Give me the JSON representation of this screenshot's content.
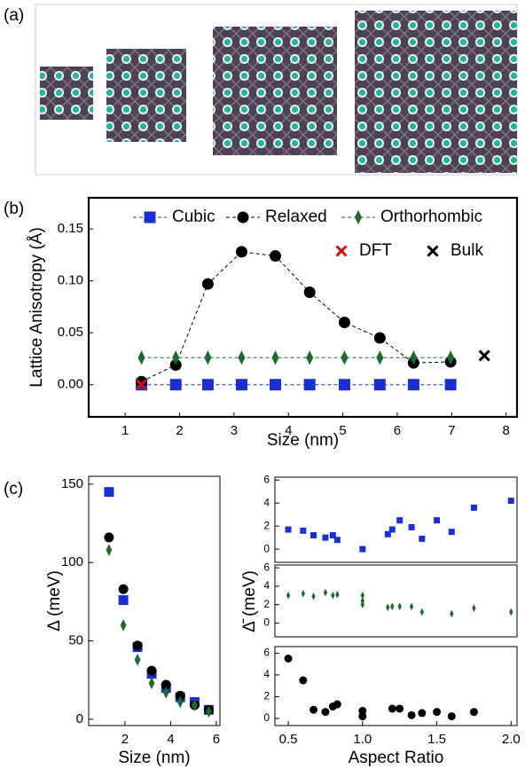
{
  "panel_labels": [
    "(a)",
    "(b)",
    "(c)"
  ],
  "chart_data": [
    {
      "type": "line",
      "xlabel": "Size (nm)",
      "ylabel": "Lattice Anisotropy (Å)",
      "x": [
        1.3,
        1.93,
        2.52,
        3.14,
        3.76,
        4.39,
        5.03,
        5.68,
        6.3,
        6.98
      ],
      "series": [
        {
          "name": "Cubic",
          "color": "#1a2fd0",
          "marker": "square",
          "line": "dashed",
          "values": [
            0,
            0,
            0,
            0,
            0,
            0,
            0,
            0,
            0,
            0
          ]
        },
        {
          "name": "Relaxed",
          "color": "#000000",
          "marker": "circle",
          "line": "dashed",
          "values": [
            0.003,
            0.019,
            0.097,
            0.128,
            0.124,
            0.089,
            0.06,
            0.045,
            0.021,
            0.022
          ]
        },
        {
          "name": "Orthorhombic",
          "color": "#1e6b2e",
          "marker": "diamond",
          "line": "dashed",
          "values": [
            0.026,
            0.026,
            0.026,
            0.026,
            0.026,
            0.026,
            0.026,
            0.026,
            0.026,
            0.026
          ]
        }
      ],
      "points": [
        {
          "name": "DFT",
          "color": "#cc1111",
          "marker": "cross",
          "x": 1.3,
          "y": 0
        },
        {
          "name": "Bulk",
          "color": "#000000",
          "marker": "cross",
          "x": 7.6,
          "y": 0.028
        }
      ],
      "xlim": [
        0.33,
        8.2
      ],
      "ylim": [
        -0.031,
        0.18
      ],
      "xticks": [
        1,
        2,
        3,
        4,
        5,
        6,
        7,
        8
      ],
      "yticks": [
        {
          "value": 0,
          "label": "0.00"
        },
        {
          "value": 0.05,
          "label": "0.05"
        },
        {
          "value": 0.1,
          "label": "0.10"
        },
        {
          "value": 0.15,
          "label": "0.15"
        }
      ]
    },
    {
      "type": "scatter",
      "xlabel": "Size (nm)",
      "ylabel": "Δ (meV)",
      "x": [
        1.3,
        1.93,
        2.55,
        3.17,
        3.8,
        4.42,
        5.05,
        5.67
      ],
      "series": [
        {
          "color": "#1a2fd0",
          "marker": "square",
          "values": [
            145,
            76,
            46,
            29,
            20,
            14,
            11,
            6
          ]
        },
        {
          "color": "#000000",
          "marker": "circle",
          "values": [
            116,
            83,
            47,
            31,
            22,
            15,
            9,
            6
          ]
        },
        {
          "color": "#1e6b2e",
          "marker": "diamond",
          "values": [
            108,
            60,
            38,
            23,
            17,
            11,
            9,
            5
          ]
        }
      ],
      "xlim": [
        0.41,
        6.16
      ],
      "ylim": [
        -4,
        155
      ],
      "xticks": [
        2,
        4,
        6
      ],
      "yticks": [
        0,
        50,
        100,
        150
      ]
    },
    {
      "type": "scatter",
      "series": [
        {
          "color": "#1a2fd0",
          "marker": "square",
          "x": [
            0.5,
            0.6,
            0.67,
            0.75,
            0.8,
            0.83,
            1.0,
            1.17,
            1.2,
            1.25,
            1.33,
            1.4,
            1.5,
            1.6,
            1.75,
            2.0
          ],
          "values": [
            1.7,
            1.6,
            1.2,
            1.0,
            1.2,
            0.8,
            0.0,
            1.3,
            1.7,
            2.5,
            1.9,
            0.9,
            2.5,
            1.5,
            3.6,
            4.2
          ]
        }
      ],
      "xlim": [
        0.41,
        2.04
      ],
      "ylim": [
        -1.15,
        6.25
      ],
      "yticks": [
        0,
        2,
        4,
        6
      ]
    },
    {
      "type": "scatter",
      "ylabel": "Δ̄ (meV)",
      "series": [
        {
          "color": "#1e6b2e",
          "marker": "diamond",
          "x": [
            0.5,
            0.6,
            0.67,
            0.75,
            0.8,
            0.83,
            1.0,
            1.0,
            1.0,
            1.17,
            1.2,
            1.25,
            1.33,
            1.4,
            1.6,
            1.75,
            2.0
          ],
          "values": [
            3.0,
            3.2,
            2.9,
            3.3,
            3.0,
            3.1,
            3.0,
            2.4,
            2.0,
            1.7,
            1.8,
            1.8,
            1.8,
            1.2,
            1.0,
            1.6,
            1.2
          ]
        }
      ],
      "xlim": [
        0.41,
        2.04
      ],
      "ylim": [
        -1.5,
        6.3
      ],
      "yticks": [
        0,
        2,
        4,
        6
      ]
    },
    {
      "type": "scatter",
      "xlabel": "Aspect Ratio",
      "series": [
        {
          "color": "#000000",
          "marker": "circle",
          "x": [
            0.5,
            0.6,
            0.67,
            0.75,
            0.8,
            0.83,
            1.0,
            1.0,
            1.2,
            1.25,
            1.33,
            1.4,
            1.5,
            1.6,
            1.75
          ],
          "values": [
            5.5,
            3.5,
            0.8,
            0.6,
            1.1,
            1.3,
            0.7,
            0.2,
            0.9,
            0.9,
            0.3,
            0.5,
            0.6,
            0.2,
            0.6
          ]
        }
      ],
      "xlim": [
        0.41,
        2.04
      ],
      "ylim": [
        -0.65,
        6.6
      ],
      "xticks": [
        0.5,
        {
          "value": 1,
          "label": "1.0"
        },
        1.5,
        {
          "value": 2,
          "label": "2.0"
        }
      ],
      "yticks": [
        0,
        2,
        4,
        6
      ]
    }
  ]
}
